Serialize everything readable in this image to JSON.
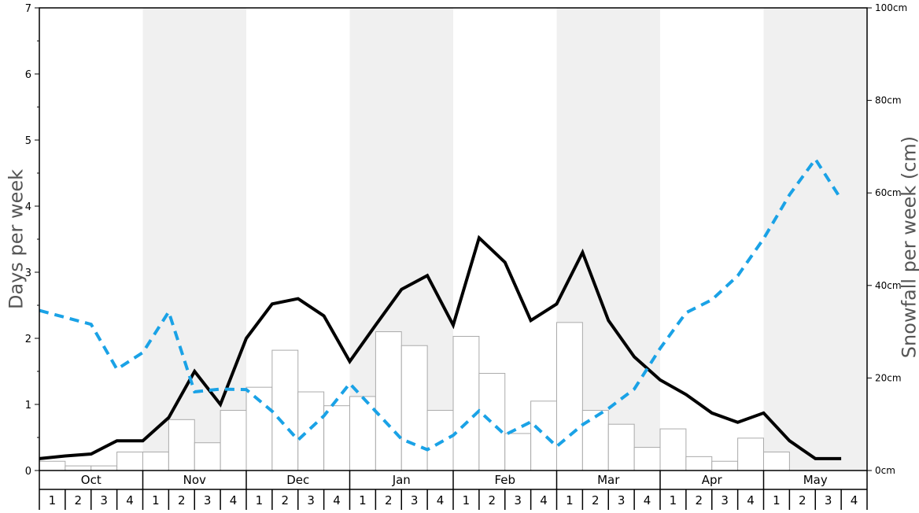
{
  "chart_data": {
    "type": "bar",
    "left_axis": {
      "label": "Days per week",
      "ylim": [
        0,
        7
      ],
      "ticks": [
        "0",
        "1",
        "2",
        "3",
        "4",
        "5",
        "6",
        "7"
      ]
    },
    "right_axis": {
      "label": "Snowfall per week (cm)",
      "ylim": [
        0,
        100
      ],
      "ticks": [
        "0cm",
        "20cm",
        "40cm",
        "60cm",
        "80cm",
        "100cm"
      ]
    },
    "months": [
      "Oct",
      "Nov",
      "Dec",
      "Jan",
      "Feb",
      "Mar",
      "Apr",
      "May"
    ],
    "week_labels": [
      "1",
      "2",
      "3",
      "4"
    ],
    "shaded_months": [
      "Nov",
      "Jan",
      "Mar",
      "May"
    ],
    "series": [
      {
        "kind": "bar",
        "axis": "right",
        "color": "#ffffff",
        "stroke": "#aaaaaa",
        "values": [
          2,
          1,
          1,
          4,
          4,
          11,
          6,
          13,
          18,
          26,
          17,
          14,
          16,
          30,
          27,
          13,
          29,
          21,
          8,
          15,
          32,
          13,
          10,
          5,
          9,
          3,
          2,
          7,
          4,
          0,
          0,
          0
        ]
      },
      {
        "kind": "line",
        "axis": "left",
        "color": "#000000",
        "style": "solid",
        "values": [
          0.18,
          0.22,
          0.25,
          0.45,
          0.45,
          0.8,
          1.5,
          1.0,
          2.0,
          2.52,
          2.6,
          2.34,
          1.65,
          2.2,
          2.74,
          2.95,
          2.2,
          3.52,
          3.15,
          2.27,
          2.52,
          3.3,
          2.27,
          1.72,
          1.37,
          1.15,
          0.87,
          0.73,
          0.87,
          0.45,
          0.18,
          0.18
        ]
      },
      {
        "kind": "line",
        "axis": "right",
        "color": "#1aa2e6",
        "style": "dashed",
        "values": [
          34.6,
          33.1,
          31.6,
          21.9,
          25.5,
          34.3,
          17.0,
          17.6,
          17.5,
          12.8,
          6.6,
          11.8,
          18.8,
          12.8,
          6.8,
          4.5,
          7.6,
          12.9,
          7.7,
          10.5,
          5.2,
          9.9,
          13.4,
          17.6,
          26.4,
          34.1,
          36.9,
          42.1,
          50.1,
          59.6,
          67.3,
          58.6
        ]
      }
    ]
  }
}
